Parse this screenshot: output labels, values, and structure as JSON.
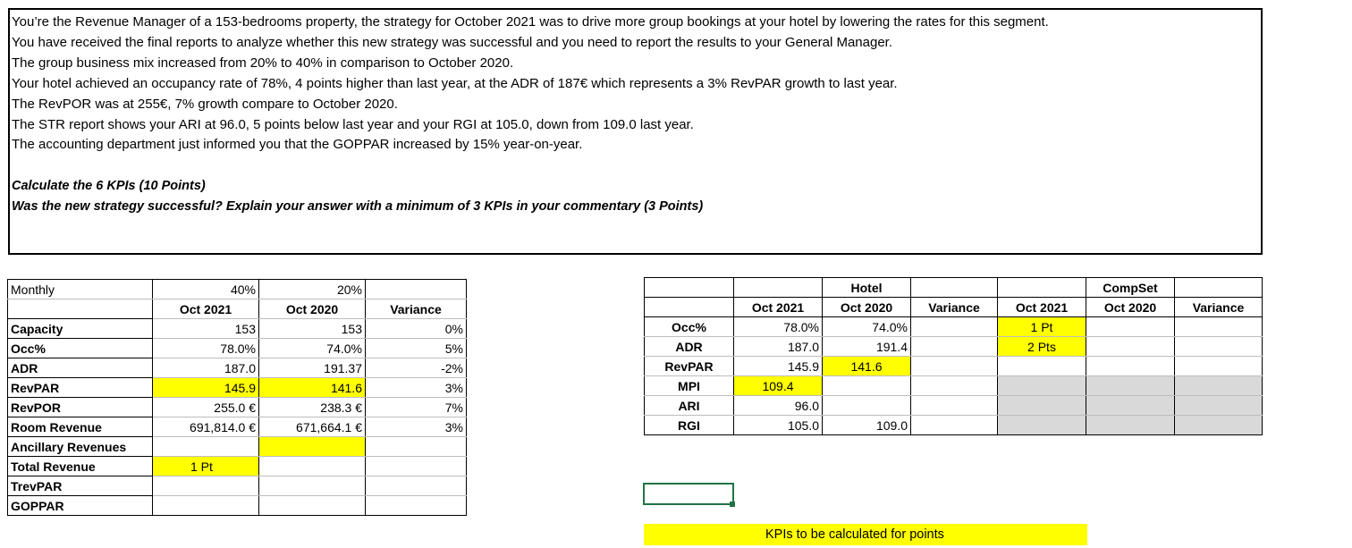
{
  "scenario": {
    "lines": [
      "You’re the Revenue Manager of a 153-bedrooms property, the strategy for October 2021 was to drive more group bookings at your hotel by lowering the rates for this segment.",
      "You have received the final reports to analyze whether this new strategy was successful and you need to report the results to your General Manager.",
      "The group business mix increased from 20% to 40% in comparison to October 2020.",
      "Your hotel achieved an occupancy rate of 78%, 4 points higher than last year, at the ADR of 187€ which represents a 3% RevPAR growth to last year.",
      "The RevPOR was at 255€, 7% growth compare to October 2020.",
      "The STR report shows your ARI at 96.0, 5 points below last year and your RGI at 105.0, down from 109.0 last year.",
      "The accounting department just informed you that the GOPPAR increased by 15% year-on-year."
    ],
    "question1": "Calculate the 6 KPIs (10 Points)",
    "question2": "Was the new strategy successful? Explain your answer with a minimum of 3 KPIs in your commentary (3 Points)"
  },
  "monthly": {
    "title": "Monthly",
    "mix_2021": "40%",
    "mix_2020": "20%",
    "headers": [
      "Oct 2021",
      "Oct 2020",
      "Variance"
    ],
    "rows": [
      {
        "label": "Capacity",
        "oct2021": "153",
        "oct2020": "153",
        "variance": "0%"
      },
      {
        "label": "Occ%",
        "oct2021": "78.0%",
        "oct2020": "74.0%",
        "variance": "5%"
      },
      {
        "label": "ADR",
        "oct2021": "187.0",
        "oct2020": "191.37",
        "variance": "-2%"
      },
      {
        "label": "RevPAR",
        "oct2021": "145.9",
        "oct2020": "141.6",
        "variance": "3%"
      },
      {
        "label": "RevPOR",
        "oct2021": "255.0 €",
        "oct2020": "238.3 €",
        "variance": "7%"
      },
      {
        "label": "Room Revenue",
        "oct2021": "691,814.0 €",
        "oct2020": "671,664.1 €",
        "variance": "3%"
      },
      {
        "label": "Ancillary Revenues",
        "oct2021": "",
        "oct2020": "",
        "variance": ""
      },
      {
        "label": "Total Revenue",
        "oct2021": "1 Pt",
        "oct2020": "",
        "variance": ""
      },
      {
        "label": "TrevPAR",
        "oct2021": "",
        "oct2020": "",
        "variance": ""
      },
      {
        "label": "GOPPAR",
        "oct2021": "",
        "oct2020": "",
        "variance": ""
      }
    ]
  },
  "kpi": {
    "hotel_title": "Hotel",
    "compset_title": "CompSet",
    "headers": [
      "Oct 2021",
      "Oct 2020",
      "Variance",
      "Oct 2021",
      "Oct 2020",
      "Variance"
    ],
    "rows": [
      {
        "label": "Occ%",
        "h2021": "78.0%",
        "h2020": "74.0%",
        "hvar": "",
        "c2021": "1 Pt",
        "c2020": "",
        "cvar": ""
      },
      {
        "label": "ADR",
        "h2021": "187.0",
        "h2020": "191.4",
        "hvar": "",
        "c2021": "2 Pts",
        "c2020": "",
        "cvar": ""
      },
      {
        "label": "RevPAR",
        "h2021": "145.9",
        "h2020": "141.6",
        "hvar": "",
        "c2021": "",
        "c2020": "",
        "cvar": ""
      },
      {
        "label": "MPI",
        "h2021": "109.4",
        "h2020": "",
        "hvar": "",
        "c2021": "",
        "c2020": "",
        "cvar": ""
      },
      {
        "label": "ARI",
        "h2021": "96.0",
        "h2020": "",
        "hvar": "",
        "c2021": "",
        "c2020": "",
        "cvar": ""
      },
      {
        "label": "RGI",
        "h2021": "105.0",
        "h2020": "109.0",
        "hvar": "",
        "c2021": "",
        "c2020": "",
        "cvar": ""
      }
    ]
  },
  "legend": {
    "text": "KPIs to be calculated for points"
  },
  "colors": {
    "highlight": "#ffff00",
    "disabled": "#d9d9d9",
    "selection": "#217346"
  }
}
